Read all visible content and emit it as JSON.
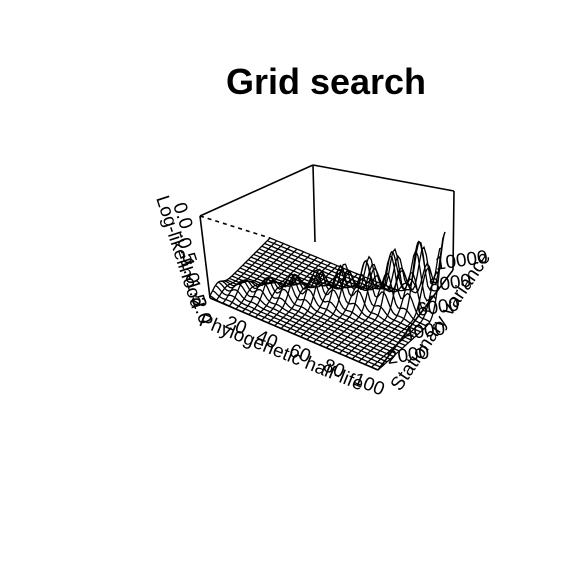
{
  "chart_data": {
    "type": "surface-3d",
    "title": "Grid search",
    "xlabel": "Phylogenetic half-life",
    "ylabel": "Stationary variance",
    "zlabel": "Log-likelihood",
    "x_ticks": [
      "20",
      "40",
      "60",
      "80",
      "100"
    ],
    "y_ticks": [
      "2000",
      "4000",
      "6000",
      "8000",
      "10000"
    ],
    "z_ticks": [
      "-2.0",
      "-1.5",
      "-1.0",
      "-0.5",
      "0.0"
    ],
    "xlim": [
      0,
      100
    ],
    "ylim": [
      0,
      10000
    ],
    "zlim": [
      -2.0,
      0.0
    ],
    "grid": false,
    "legend": "none",
    "line_color": "#000000"
  }
}
